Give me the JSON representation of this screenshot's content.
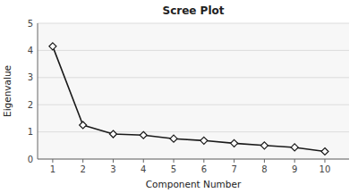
{
  "chart_data": {
    "type": "line",
    "title": "Scree Plot",
    "xlabel": "Component Number",
    "ylabel": "Eigenvalue",
    "x": [
      1,
      2,
      3,
      4,
      5,
      6,
      7,
      8,
      9,
      10
    ],
    "values": [
      4.15,
      1.25,
      0.92,
      0.88,
      0.75,
      0.68,
      0.58,
      0.5,
      0.43,
      0.28
    ],
    "color": "#1a1a1a",
    "marker": "diamond",
    "xlim": [
      0.5,
      10.8
    ],
    "ylim": [
      0,
      5
    ],
    "xticks": [
      1,
      2,
      3,
      4,
      5,
      6,
      7,
      8,
      9,
      10
    ],
    "yticks": [
      0,
      1,
      2,
      3,
      4,
      5
    ],
    "grid": true
  }
}
